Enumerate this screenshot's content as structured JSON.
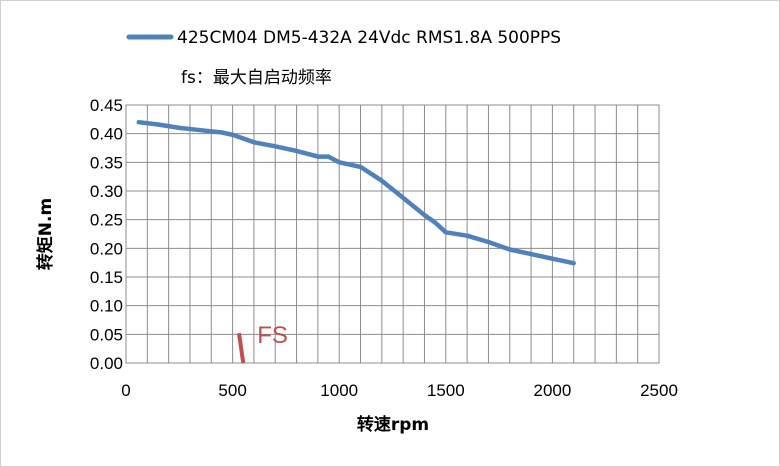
{
  "chart_data": {
    "type": "line",
    "title": "",
    "xlabel": "转速rpm",
    "ylabel": "转矩N.m",
    "xlim": [
      0,
      2500
    ],
    "ylim": [
      0,
      0.45
    ],
    "x_ticks": [
      "0",
      "500",
      "1000",
      "1500",
      "2000",
      "2500"
    ],
    "y_ticks": [
      "0.00",
      "0.05",
      "0.10",
      "0.15",
      "0.20",
      "0.25",
      "0.30",
      "0.35",
      "0.40",
      "0.45"
    ],
    "grid": true,
    "legend_position": "top",
    "series": [
      {
        "name": "425CM04 DM5-432A 24Vdc RMS1.8A 500PPS",
        "color": "#4f81bd",
        "x": [
          60,
          150,
          250,
          350,
          450,
          500,
          600,
          700,
          800,
          900,
          950,
          1000,
          1100,
          1200,
          1300,
          1400,
          1450,
          1500,
          1600,
          1700,
          1800,
          1900,
          2000,
          2100
        ],
        "y": [
          0.42,
          0.416,
          0.41,
          0.406,
          0.402,
          0.398,
          0.385,
          0.378,
          0.37,
          0.36,
          0.36,
          0.35,
          0.342,
          0.318,
          0.288,
          0.258,
          0.245,
          0.228,
          0.222,
          0.211,
          0.198,
          0.19,
          0.182,
          0.174
        ]
      }
    ],
    "annotations": [
      {
        "label": "FS",
        "x": [
          530,
          550
        ],
        "y": [
          0.052,
          0.0
        ],
        "color": "#c0504d"
      }
    ],
    "extra_legend_text": "fs：最大自启动频率"
  }
}
